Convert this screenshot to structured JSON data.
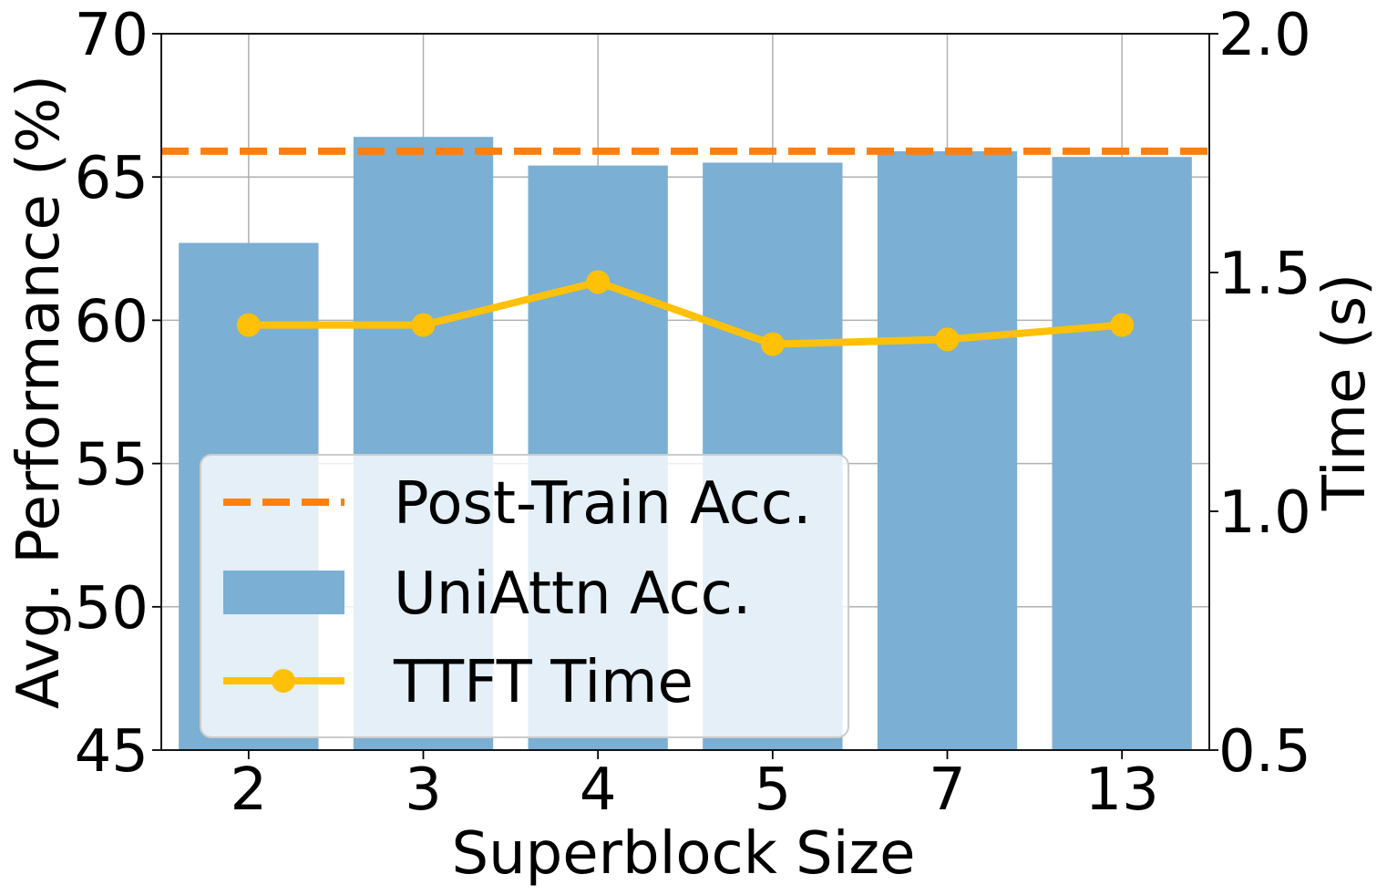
{
  "chart_data": {
    "type": "bar",
    "categories": [
      "2",
      "3",
      "4",
      "5",
      "7",
      "13"
    ],
    "xlabel": "Superblock Size",
    "ylabel": "Avg. Performance (%)",
    "y2label": "Time (s)",
    "ylim": [
      45,
      70
    ],
    "y2lim": [
      0.5,
      2.0
    ],
    "yticks": [
      "45",
      "50",
      "55",
      "60",
      "65",
      "70"
    ],
    "y2ticks": [
      "0.5",
      "1.0",
      "1.5",
      "2.0"
    ],
    "grid": true,
    "legend_position": "lower-left",
    "series": [
      {
        "name": "UniAttn Acc.",
        "type": "bar",
        "axis": "left",
        "color": "#7bafd4",
        "values": [
          62.7,
          66.4,
          65.4,
          65.5,
          65.9,
          65.7
        ]
      },
      {
        "name": "TTFT Time",
        "type": "line",
        "axis": "right",
        "color": "#ffc107",
        "marker": "circle",
        "values": [
          1.39,
          1.39,
          1.48,
          1.35,
          1.36,
          1.39
        ]
      },
      {
        "name": "Post-Train Acc.",
        "type": "hline",
        "axis": "left",
        "color": "#ff7f0e",
        "style": "dashed",
        "value": 65.9
      }
    ],
    "legend": [
      "Post-Train Acc.",
      "UniAttn Acc.",
      "TTFT Time"
    ]
  }
}
